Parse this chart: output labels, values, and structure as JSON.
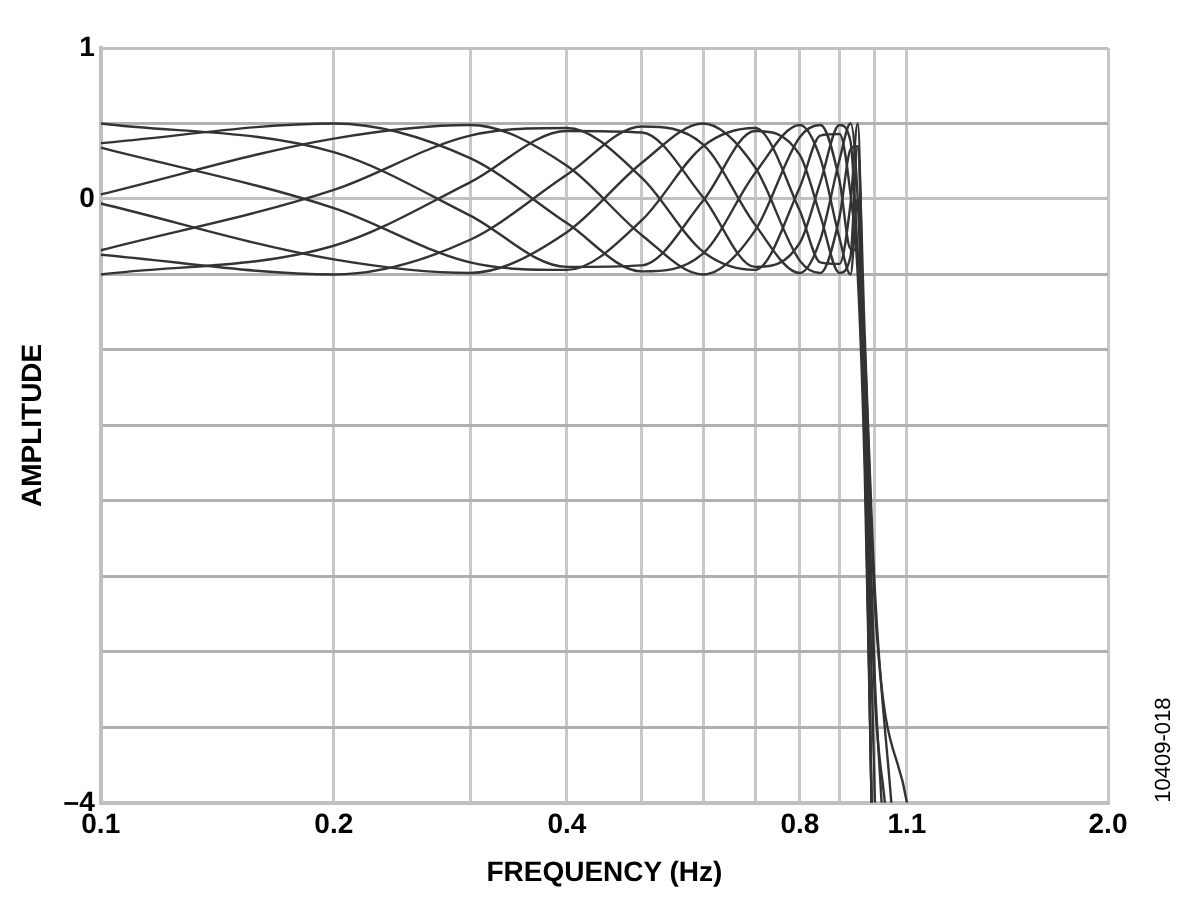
{
  "chart_data": {
    "type": "line",
    "xlabel": "FREQUENCY (Hz)",
    "ylabel": "AMPLITUDE",
    "annotations": [
      "10409-018"
    ],
    "log": "x",
    "xlim": [
      0.1,
      2
    ],
    "ylim": [
      -4,
      1
    ],
    "xticks": [
      0.1,
      0.2,
      {
        "value": 0.3,
        "label": null
      },
      0.4,
      {
        "value": 0.5,
        "label": null
      },
      {
        "value": 0.6,
        "label": null
      },
      {
        "value": 0.7,
        "label": null
      },
      0.8,
      {
        "value": 0.9,
        "label": null
      },
      {
        "value": 1,
        "label": null
      },
      1.1,
      {
        "value": 2,
        "label": "2.0"
      }
    ],
    "yticks": [
      {
        "value": -4,
        "label": "–4"
      },
      {
        "value": -3.5,
        "label": null
      },
      {
        "value": -3,
        "label": null
      },
      {
        "value": -2.5,
        "label": null
      },
      {
        "value": -2,
        "label": null
      },
      {
        "value": -1.5,
        "label": null
      },
      {
        "value": -1,
        "label": null
      },
      {
        "value": -0.5,
        "label": null
      },
      0,
      {
        "value": 0.5,
        "label": null
      },
      1
    ],
    "grid": true,
    "legend": false,
    "marker": "none",
    "line_style": "solid",
    "series": [
      {
        "color": "#333333",
        "x": [
          0.1,
          0.2,
          0.3,
          0.4,
          0.5,
          0.6,
          0.7,
          0.8,
          0.85,
          0.9,
          0.93,
          0.95,
          0.97,
          0.99
        ],
        "values": [
          0.34,
          -0.06,
          -0.42,
          -0.47,
          -0.14,
          0.35,
          0.47,
          -0.08,
          -0.42,
          -0.43,
          -0.03,
          0.5,
          -1.5,
          -4
        ]
      },
      {
        "color": "#333333",
        "x": [
          0.1,
          0.2,
          0.3,
          0.4,
          0.5,
          0.6,
          0.7,
          0.8,
          0.85,
          0.9,
          0.93,
          0.95,
          0.97,
          1.0,
          1.05
        ],
        "values": [
          0.5,
          0.31,
          -0.11,
          -0.45,
          -0.44,
          -0.01,
          0.45,
          0.29,
          -0.11,
          -0.49,
          -0.38,
          0.35,
          -0.9,
          -2.6,
          -4
        ]
      },
      {
        "color": "#333333",
        "x": [
          0.1,
          0.2,
          0.3,
          0.4,
          0.5,
          0.6,
          0.7,
          0.8,
          0.85,
          0.9,
          0.93,
          0.95,
          0.97,
          1.0,
          1.02
        ],
        "values": [
          0.37,
          0.5,
          0.27,
          -0.16,
          -0.48,
          -0.36,
          0.17,
          0.49,
          0.27,
          -0.26,
          -0.5,
          0,
          -1.2,
          -3.2,
          -4
        ]
      },
      {
        "color": "#333333",
        "x": [
          0.1,
          0.2,
          0.3,
          0.4,
          0.5,
          0.6,
          0.7,
          0.8,
          0.85,
          0.9,
          0.93,
          0.95,
          0.97,
          0.99
        ],
        "values": [
          0.03,
          0.4,
          0.49,
          0.22,
          -0.24,
          -0.5,
          -0.21,
          0.41,
          0.49,
          0.12,
          -0.33,
          -0.35,
          -1.6,
          -4
        ]
      },
      {
        "color": "#333333",
        "x": [
          0.1,
          0.2,
          0.3,
          0.4,
          0.5,
          0.6,
          0.7,
          0.8,
          0.85,
          0.9,
          0.93,
          0.95,
          0.97,
          0.99
        ],
        "values": [
          -0.34,
          0.06,
          0.42,
          0.47,
          0.14,
          -0.35,
          -0.47,
          0.08,
          0.42,
          0.43,
          0.03,
          -0.5,
          -1.8,
          -4
        ]
      },
      {
        "color": "#333333",
        "x": [
          0.1,
          0.2,
          0.3,
          0.4,
          0.5,
          0.6,
          0.7,
          0.8,
          0.85,
          0.9,
          0.93,
          0.95,
          0.97,
          1.0,
          1.1
        ],
        "values": [
          -0.5,
          -0.31,
          0.11,
          0.45,
          0.44,
          0.01,
          -0.45,
          -0.29,
          0.11,
          0.49,
          0.38,
          -0.35,
          -1.0,
          -2.7,
          -4
        ]
      },
      {
        "color": "#333333",
        "x": [
          0.1,
          0.2,
          0.3,
          0.4,
          0.5,
          0.6,
          0.7,
          0.8,
          0.85,
          0.9,
          0.93,
          0.95,
          0.97,
          1.0,
          1.03
        ],
        "values": [
          -0.37,
          -0.5,
          -0.27,
          0.16,
          0.48,
          0.36,
          -0.17,
          -0.49,
          -0.27,
          0.26,
          0.5,
          0,
          -1.3,
          -3.3,
          -4
        ]
      },
      {
        "color": "#333333",
        "x": [
          0.1,
          0.2,
          0.3,
          0.4,
          0.5,
          0.6,
          0.7,
          0.8,
          0.85,
          0.9,
          0.93,
          0.95,
          0.97,
          1.0
        ],
        "values": [
          -0.03,
          -0.4,
          -0.49,
          -0.22,
          0.24,
          0.5,
          0.21,
          -0.41,
          -0.49,
          -0.12,
          0.33,
          0.35,
          -1.4,
          -4
        ]
      }
    ]
  }
}
